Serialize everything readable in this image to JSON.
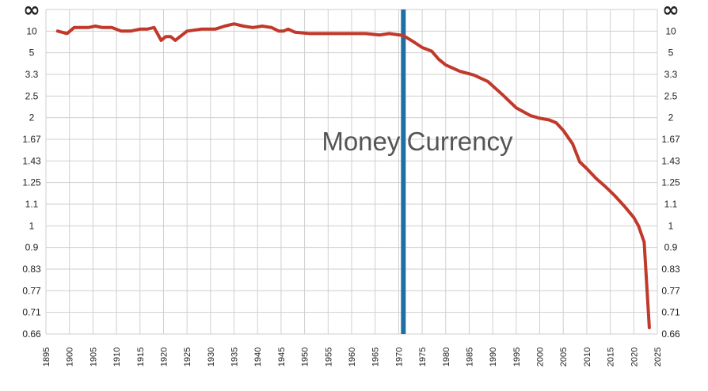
{
  "chart_data": {
    "type": "line",
    "title": "",
    "xlabel": "",
    "ylabel": "",
    "xlim": [
      1895,
      2025
    ],
    "x_ticks": [
      "1895",
      "1900",
      "1905",
      "1910",
      "1915",
      "1920",
      "1925",
      "1930",
      "1935",
      "1940",
      "1945",
      "1950",
      "1955",
      "1960",
      "1965",
      "1970",
      "1975",
      "1980",
      "1985",
      "1990",
      "1995",
      "2000",
      "2005",
      "2010",
      "2015",
      "2020",
      "2025"
    ],
    "y_ticks": [
      "∞",
      "10",
      "5",
      "3.3",
      "2.5",
      "2",
      "1.67",
      "1.43",
      "1.25",
      "1.1",
      "1",
      "0.9",
      "0.83",
      "0.77",
      "0.71",
      "0.66"
    ],
    "y_scale": "reciprocal",
    "grid": true,
    "series": [
      {
        "color": "#c0392b",
        "x": [
          1897.5,
          1899.5,
          1901,
          1902.5,
          1904,
          1905.5,
          1907,
          1909,
          1911,
          1913,
          1915,
          1916.5,
          1918,
          1919.5,
          1920.5,
          1921.5,
          1922.5,
          1925,
          1928,
          1931,
          1933,
          1935,
          1937,
          1939,
          1941,
          1943,
          1944.5,
          1945.5,
          1946.5,
          1948,
          1951,
          1954,
          1957,
          1960,
          1963,
          1966,
          1968,
          1971,
          1973,
          1975,
          1977,
          1978.5,
          1980,
          1983,
          1986,
          1989,
          1992,
          1995,
          1998,
          2000,
          2002,
          2003.5,
          2005,
          2007,
          2008.5,
          2010,
          2012,
          2014,
          2016,
          2018,
          2020,
          2021,
          2022.2,
          2023.3
        ],
        "y": [
          10,
          9,
          12,
          12,
          12,
          13,
          12,
          12,
          10,
          10,
          11,
          11,
          12,
          7,
          8,
          8,
          7,
          10,
          11,
          11,
          13,
          15,
          13,
          12,
          13,
          12,
          10,
          10,
          11,
          9.5,
          9,
          9,
          9,
          9,
          9,
          8.5,
          9,
          8.3,
          6.8,
          5.7,
          5.2,
          4.35,
          3.9,
          3.5,
          3.3,
          3.0,
          2.55,
          2.2,
          2.04,
          1.99,
          1.96,
          1.91,
          1.79,
          1.61,
          1.42,
          1.36,
          1.28,
          1.22,
          1.16,
          1.1,
          1.04,
          1.0,
          0.93,
          0.68
        ]
      }
    ],
    "annotations": [
      {
        "text": "Money",
        "x": 1962
      },
      {
        "text": "Currency",
        "x": 1983
      },
      {
        "type": "vertical-line",
        "x": 1971,
        "color": "#1f6fa5"
      }
    ]
  }
}
